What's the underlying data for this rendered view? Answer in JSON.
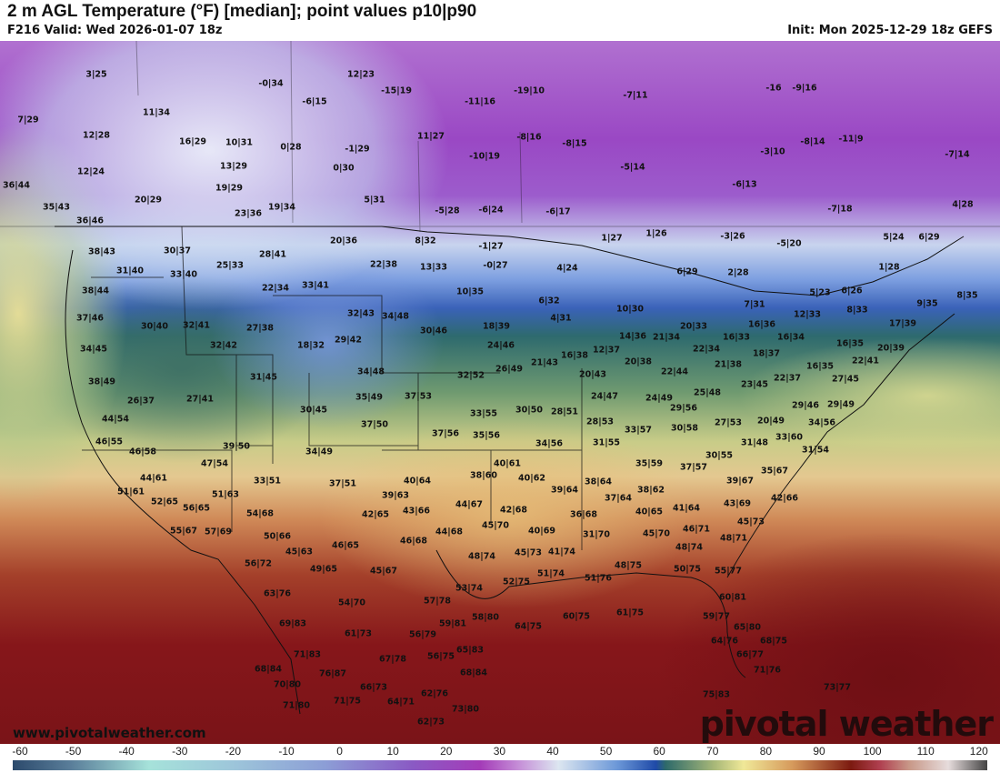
{
  "header": {
    "title": "2 m AGL Temperature (°F) [median]; point values p10|p90",
    "valid": "F216 Valid: Wed 2026-01-07 18z",
    "init": "Init: Mon 2025-12-29 18z GEFS"
  },
  "watermark": "www.pivotalweather.com",
  "logo": "pivotal weather",
  "colorbar": {
    "unit": "°F",
    "ticks": [
      "-60",
      "-50",
      "-40",
      "-30",
      "-20",
      "-10",
      "0",
      "10",
      "20",
      "30",
      "40",
      "50",
      "60",
      "70",
      "80",
      "90",
      "100",
      "110",
      "120"
    ]
  },
  "points": [
    "3|25",
    "7|29",
    "11|34",
    "12|28",
    "16|29",
    "10|31",
    "0|28",
    "-1|29",
    "12|24",
    "13|29",
    "0|30",
    "36|44",
    "20|29",
    "19|29",
    "5|31",
    "35|43",
    "23|36",
    "19|34",
    "-5|28",
    "-6|24",
    "-6|17",
    "36|46",
    "38|43",
    "30|37",
    "28|41",
    "20|36",
    "8|32",
    "-1|27",
    "1|27",
    "1|26",
    "-3|26",
    "-5|20",
    "5|24",
    "6|29",
    "4|28",
    "31|40",
    "33|40",
    "25|33",
    "22|38",
    "13|33",
    "-0|27",
    "4|24",
    "6|29",
    "2|28",
    "1|28",
    "38|44",
    "22|34",
    "33|41",
    "10|35",
    "6|32",
    "7|31",
    "5|23",
    "6|26",
    "9|35",
    "8|35",
    "37|46",
    "32|43",
    "34|48",
    "10|30",
    "8|33",
    "12|33",
    "4|31",
    "30|40",
    "32|41",
    "27|38",
    "30|46",
    "18|39",
    "20|33",
    "16|36",
    "16|34",
    "17|39",
    "14|36",
    "21|34",
    "16|33",
    "34|45",
    "32|42",
    "18|32",
    "29|42",
    "24|46",
    "22|34",
    "18|37",
    "16|35",
    "20|39",
    "16|38",
    "12|37",
    "20|38",
    "21|43",
    "21|38",
    "22|41",
    "26|49",
    "32|52",
    "34|48",
    "31|45",
    "38|49",
    "20|43",
    "22|44",
    "22|37",
    "16|35",
    "27|45",
    "23|45",
    "26|37",
    "27|41",
    "35|49",
    "37|53",
    "24|47",
    "24|49",
    "25|48",
    "29|56",
    "29|46",
    "29|49",
    "30|45",
    "33|55",
    "30|50",
    "28|51",
    "28|53",
    "44|54",
    "37|50",
    "34|56",
    "20|49",
    "27|53",
    "30|58",
    "33|57",
    "37|56",
    "35|56",
    "46|55",
    "31|55",
    "34|56",
    "31|48",
    "33|60",
    "31|54",
    "39|50",
    "34|49",
    "46|58",
    "30|55",
    "47|54",
    "35|59",
    "37|57",
    "40|61",
    "35|67",
    "44|61",
    "33|51",
    "37|51",
    "40|64",
    "38|60",
    "40|62",
    "38|64",
    "39|67",
    "51|61",
    "51|63",
    "39|63",
    "39|64",
    "37|64",
    "38|62",
    "42|66",
    "52|65",
    "56|65",
    "43|66",
    "44|67",
    "42|68",
    "41|64",
    "43|69",
    "54|68",
    "42|65",
    "36|68",
    "40|65",
    "45|73",
    "55|67",
    "57|69",
    "50|66",
    "45|70",
    "44|68",
    "40|69",
    "31|70",
    "45|70",
    "46|71",
    "48|71",
    "46|68",
    "46|65",
    "45|63",
    "48|74",
    "45|73",
    "41|74",
    "48|74",
    "56|72",
    "49|65",
    "45|67",
    "51|74",
    "51|76",
    "48|75",
    "50|75",
    "55|77",
    "52|75",
    "53|74",
    "63|76",
    "54|70",
    "57|78",
    "60|81",
    "58|80",
    "60|75",
    "61|75",
    "59|77",
    "64|75",
    "59|81",
    "69|83",
    "61|73",
    "56|79",
    "65|80",
    "64|76",
    "68|75",
    "71|83",
    "67|78",
    "56|75",
    "65|83",
    "66|77",
    "68|84",
    "76|87",
    "68|84",
    "71|76",
    "70|80",
    "66|73",
    "62|76",
    "73|77",
    "71|75",
    "64|71",
    "71|80",
    "73|80",
    "75|83",
    "62|73",
    "-0|34",
    "12|23",
    "-15|19",
    "-11|16",
    "-19|10",
    "-7|11",
    "-6|15",
    "-16",
    "-9|16",
    "11|27",
    "-10|19",
    "-8|16",
    "-8|15",
    "-5|14",
    "-3|10",
    "-8|14",
    "-11|9",
    "-7|14",
    "-6|13",
    "-7|18"
  ]
}
